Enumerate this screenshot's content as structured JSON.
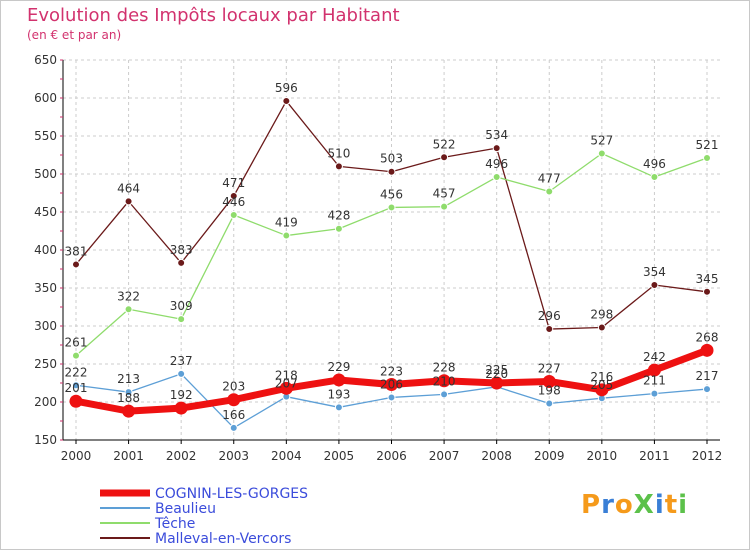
{
  "header": {
    "title": "Evolution des Impôts locaux par Habitant",
    "subtitle": "(en € et par an)"
  },
  "logo": {
    "text": "ProXiti"
  },
  "chart_data": {
    "type": "line",
    "title": "Evolution des Impôts locaux par Habitant",
    "subtitle": "(en € et par an)",
    "x": [
      "2000",
      "2001",
      "2002",
      "2003",
      "2004",
      "2005",
      "2006",
      "2007",
      "2008",
      "2009",
      "2010",
      "2011",
      "2012"
    ],
    "ylim": [
      150,
      650
    ],
    "yticks": [
      150,
      200,
      250,
      300,
      350,
      400,
      450,
      500,
      550,
      600,
      650
    ],
    "grid": true,
    "legend_position": "bottom-left",
    "series": [
      {
        "name": "Malleval-en-Vercors",
        "color": "#6b1a1a",
        "values": [
          381,
          464,
          383,
          471,
          596,
          510,
          503,
          522,
          534,
          296,
          298,
          354,
          345
        ]
      },
      {
        "name": "Têche",
        "color": "#8fdc6c",
        "values": [
          261,
          322,
          309,
          446,
          419,
          428,
          456,
          457,
          496,
          477,
          527,
          496,
          521
        ]
      },
      {
        "name": "Beaulieu",
        "color": "#5d9fd6",
        "values": [
          222,
          213,
          237,
          166,
          207,
          193,
          206,
          210,
          220,
          198,
          205,
          211,
          217
        ]
      },
      {
        "name": "COGNIN-LES-GORGES",
        "color": "#ee1111",
        "values": [
          201,
          188,
          192,
          203,
          218,
          229,
          223,
          228,
          225,
          227,
          216,
          242,
          268
        ]
      }
    ],
    "legend_order": [
      "COGNIN-LES-GORGES",
      "Beaulieu",
      "Têche",
      "Malleval-en-Vercors"
    ]
  }
}
